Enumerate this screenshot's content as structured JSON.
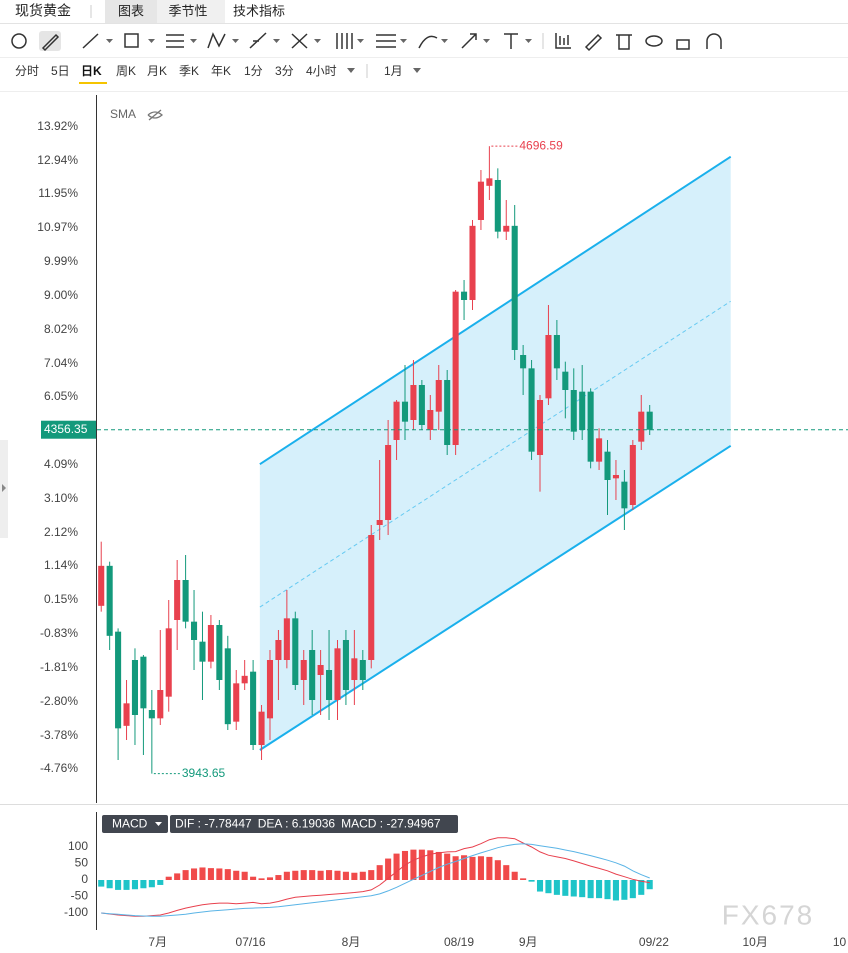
{
  "ui": {
    "tabs": [
      "现货黄金",
      "图表",
      "季节性",
      "技术指标"
    ],
    "timeframes": [
      "分时",
      "5日",
      "日K",
      "周K",
      "月K",
      "季K",
      "年K",
      "1分",
      "3分",
      "4小时"
    ],
    "active_timeframe": 2,
    "period": "1月",
    "watermark": "FX678"
  },
  "chart_data": [
    {
      "type": "candlestick",
      "indicator": "SMA",
      "up_color": "#e8414e",
      "down_color": "#13997b",
      "xlim": [
        -0.5,
        88.5
      ],
      "ylim": [
        3912,
        4758
      ],
      "yticks": [
        {
          "value": 4719.6,
          "label": "13.92%"
        },
        {
          "value": 4678.8,
          "label": "12.94%"
        },
        {
          "value": 4639.2,
          "label": "11.95%"
        },
        {
          "value": 4598.4,
          "label": "10.97%"
        },
        {
          "value": 4557.6,
          "label": "9.99%"
        },
        {
          "value": 4516.8,
          "label": "9.00%"
        },
        {
          "value": 4476,
          "label": "8.02%"
        },
        {
          "value": 4435.2,
          "label": "7.04%"
        },
        {
          "value": 4395.6,
          "label": "6.05%"
        },
        {
          "value": 4314,
          "label": "4.09%"
        },
        {
          "value": 4273.2,
          "label": "3.10%"
        },
        {
          "value": 4232.4,
          "label": "2.12%"
        },
        {
          "value": 4192.8,
          "label": "1.14%"
        },
        {
          "value": 4152,
          "label": "0.15%"
        },
        {
          "value": 4111.2,
          "label": "-0.83%"
        },
        {
          "value": 4070.4,
          "label": "-1.81%"
        },
        {
          "value": 4029.6,
          "label": "-2.80%"
        },
        {
          "value": 3988.8,
          "label": "-3.78%"
        },
        {
          "value": 3949.2,
          "label": "-4.76%"
        }
      ],
      "open": [
        4145,
        4193,
        4114,
        4001,
        4080,
        4084,
        4020,
        4010,
        4036,
        4128,
        4176,
        4126,
        4102,
        4078,
        4122,
        4094,
        4006,
        4052,
        4066,
        3978,
        4010,
        4080,
        4080,
        4130,
        4056,
        4092,
        4062,
        4068,
        4032,
        4104,
        4056,
        4080,
        4080,
        4242,
        4248,
        4344,
        4390,
        4368,
        4410,
        4356,
        4378,
        4416,
        4338,
        4522,
        4512,
        4608,
        4649,
        4656,
        4594,
        4601,
        4446,
        4430,
        4326,
        4394,
        4470,
        4426,
        4404,
        4402,
        4402,
        4318,
        4330,
        4298,
        4294,
        4266,
        4342,
        4378
      ],
      "close": [
        4193,
        4109,
        3998,
        4028,
        4014,
        4022,
        4010,
        4044,
        4118,
        4176,
        4126,
        4104,
        4078,
        4122,
        4056,
        4003,
        4052,
        4061,
        3978,
        4018,
        4080,
        4104,
        4130,
        4050,
        4080,
        4032,
        4074,
        4032,
        4094,
        4044,
        4082,
        4056,
        4230,
        4248,
        4338,
        4390,
        4366,
        4410,
        4362,
        4380,
        4416,
        4338,
        4522,
        4512,
        4601,
        4654,
        4658,
        4594,
        4601,
        4452,
        4430,
        4330,
        4392,
        4470,
        4430,
        4404,
        4354,
        4356,
        4318,
        4346,
        4296,
        4302,
        4262,
        4338,
        4378,
        4356.35
      ],
      "high": [
        4222,
        4198,
        4118,
        4056,
        4094,
        4086,
        4044,
        4116,
        4152,
        4200,
        4206,
        4164,
        4138,
        4134,
        4128,
        4109,
        4068,
        4080,
        4080,
        4026,
        4092,
        4116,
        4164,
        4138,
        4092,
        4116,
        4092,
        4116,
        4104,
        4116,
        4116,
        4092,
        4242,
        4320,
        4368,
        4392,
        4434,
        4440,
        4416,
        4398,
        4434,
        4428,
        4524,
        4536,
        4608,
        4668,
        4696.59,
        4670,
        4632,
        4626,
        4458,
        4440,
        4398,
        4506,
        4488,
        4438,
        4430,
        4434,
        4406,
        4358,
        4344,
        4320,
        4308,
        4344,
        4398,
        4386
      ],
      "low": [
        4138,
        4092,
        3960,
        3984,
        3978,
        3966,
        3943.65,
        4002,
        4018,
        4092,
        4118,
        4068,
        4032,
        4070,
        4044,
        3996,
        3996,
        4044,
        3972,
        3960,
        3984,
        4032,
        4070,
        4044,
        4026,
        4014,
        4014,
        4008,
        4008,
        4026,
        4026,
        4044,
        4070,
        4224,
        4230,
        4320,
        4344,
        4356,
        4356,
        4344,
        4356,
        4326,
        4326,
        4488,
        4500,
        4596,
        4632,
        4586,
        4584,
        4440,
        4398,
        4320,
        4282,
        4386,
        4416,
        4370,
        4344,
        4344,
        4310,
        4308,
        4254,
        4272,
        4236,
        4260,
        4332,
        4350
      ],
      "channel": {
        "x": [
          18.8,
          74.6
        ],
        "upper": [
          4315,
          4684
        ],
        "lower": [
          3972,
          4337
        ],
        "color": "#1ab0ec",
        "fill": "#d6f0fb"
      }
    },
    {
      "type": "macd",
      "title": "MACD",
      "readout": [
        "DIF : -7.78447",
        "DEA : 6.19036",
        "MACD : -27.94967"
      ],
      "xlim": [
        -0.5,
        88.5
      ],
      "ylim": [
        -151.5,
        151.5
      ],
      "yticks": [
        100,
        50,
        0,
        -50,
        -100
      ],
      "xticks": [
        {
          "value": 6.7,
          "label": "7月"
        },
        {
          "value": 17.7,
          "label": "07/16"
        },
        {
          "value": 29.6,
          "label": "8月"
        },
        {
          "value": 42.4,
          "label": "08/19"
        },
        {
          "value": 50.6,
          "label": "9月"
        },
        {
          "value": 65.5,
          "label": "09/22"
        },
        {
          "value": 77.5,
          "label": "10月"
        },
        {
          "value": 87.5,
          "label": "10"
        }
      ],
      "histogram": {
        "up_color": "#f04a4a",
        "down_color": "#1ec4c8",
        "values": [
          -20,
          -25,
          -30,
          -30,
          -28,
          -25,
          -22,
          -15,
          10,
          20,
          30,
          35,
          38,
          36,
          35,
          33,
          28,
          25,
          10,
          5,
          8,
          15,
          25,
          28,
          30,
          30,
          28,
          30,
          28,
          25,
          22,
          25,
          30,
          45,
          65,
          80,
          88,
          92,
          92,
          90,
          85,
          80,
          72,
          75,
          70,
          72,
          70,
          60,
          45,
          25,
          5,
          -5,
          -35,
          -40,
          -45,
          -48,
          -50,
          -52,
          -55,
          -55,
          -58,
          -62,
          -60,
          -55,
          -45,
          -27.94967
        ]
      },
      "series": [
        {
          "color": "#e8414e",
          "values": [
            -100,
            -103,
            -106,
            -108,
            -110,
            -110,
            -108,
            -106,
            -100,
            -92,
            -85,
            -80,
            -75,
            -72,
            -70,
            -70,
            -72,
            -70,
            -68,
            -72,
            -70,
            -65,
            -58,
            -52,
            -50,
            -48,
            -46,
            -44,
            -42,
            -40,
            -38,
            -35,
            -30,
            -15,
            5,
            25,
            45,
            60,
            70,
            78,
            82,
            85,
            86,
            95,
            100,
            110,
            122,
            128,
            128,
            125,
            112,
            100,
            85,
            75,
            70,
            65,
            58,
            50,
            42,
            35,
            28,
            18,
            10,
            2,
            -4,
            -7.78447
          ]
        },
        {
          "color": "#5ab4e6",
          "values": [
            -100,
            -102,
            -104,
            -106,
            -108,
            -109,
            -110,
            -110,
            -108,
            -106,
            -104,
            -100,
            -97,
            -94,
            -92,
            -90,
            -88,
            -86,
            -85,
            -84,
            -83,
            -81,
            -78,
            -75,
            -72,
            -69,
            -66,
            -63,
            -60,
            -57,
            -54,
            -51,
            -48,
            -42,
            -33,
            -22,
            -10,
            2,
            14,
            26,
            38,
            48,
            56,
            65,
            74,
            82,
            90,
            98,
            104,
            108,
            110,
            108,
            104,
            100,
            96,
            91,
            86,
            80,
            74,
            67,
            60,
            52,
            42,
            28,
            16,
            6.19036
          ]
        }
      ]
    }
  ]
}
